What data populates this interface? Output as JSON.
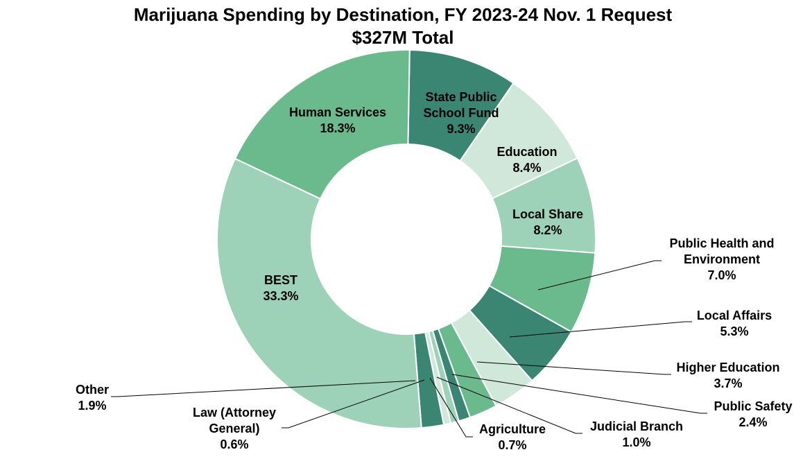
{
  "chart_data": {
    "type": "pie",
    "donut": true,
    "title": "Marijuana Spending by Destination, FY 2023-24 Nov. 1 Request",
    "subtitle": "$327M Total",
    "slices": [
      {
        "label": "State Public School Fund",
        "value": 9.3,
        "display": "9.3%",
        "color": "#3a8673"
      },
      {
        "label": "Education",
        "value": 8.4,
        "display": "8.4%",
        "color": "#cfe8da"
      },
      {
        "label": "Local Share",
        "value": 8.2,
        "display": "8.2%",
        "color": "#9dd1b8"
      },
      {
        "label": "Public Health and Environment",
        "value": 7.0,
        "display": "7.0%",
        "color": "#6bba8e"
      },
      {
        "label": "Local Affairs",
        "value": 5.3,
        "display": "5.3%",
        "color": "#3a8673"
      },
      {
        "label": "Higher Education",
        "value": 3.7,
        "display": "3.7%",
        "color": "#cfe8da"
      },
      {
        "label": "Public Safety",
        "value": 2.4,
        "display": "2.4%",
        "color": "#6bba8e"
      },
      {
        "label": "Judicial Branch",
        "value": 1.0,
        "display": "1.0%",
        "color": "#3a8673"
      },
      {
        "label": "Agriculture",
        "value": 0.7,
        "display": "0.7%",
        "color": "#9dd1b8"
      },
      {
        "label": "Law (Attorney General)",
        "value": 0.6,
        "display": "0.6%",
        "color": "#cfe8da"
      },
      {
        "label": "Other",
        "value": 1.9,
        "display": "1.9%",
        "color": "#3a8673"
      },
      {
        "label": "BEST",
        "value": 33.3,
        "display": "33.3%",
        "color": "#9dd1b8"
      },
      {
        "label": "Human Services",
        "value": 18.3,
        "display": "18.3%",
        "color": "#6bba8e"
      }
    ],
    "legend": "none"
  }
}
